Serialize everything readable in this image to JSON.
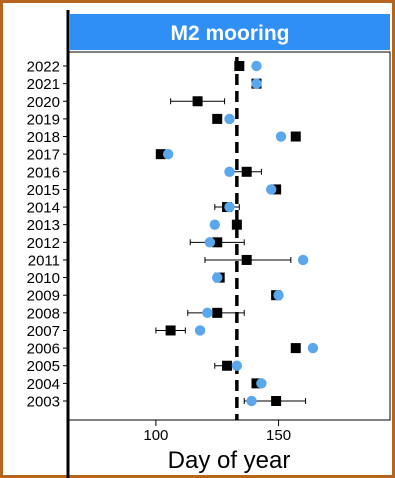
{
  "chart_data": {
    "type": "scatter",
    "title": "M2 mooring",
    "xlabel": "Day of year",
    "ylabel": "",
    "xlim": [
      65,
      195
    ],
    "x_ticks": [
      100,
      150
    ],
    "reference_line_x": 133,
    "years": [
      "2003",
      "2004",
      "2005",
      "2006",
      "2007",
      "2008",
      "2009",
      "2010",
      "2011",
      "2012",
      "2013",
      "2014",
      "2015",
      "2016",
      "2017",
      "2018",
      "2019",
      "2020",
      "2021",
      "2022"
    ],
    "series": [
      {
        "marker": "square",
        "color": "#000000",
        "values": [
          149,
          141,
          129,
          157,
          106,
          125,
          149,
          126,
          137,
          125,
          133,
          129,
          149,
          137,
          102,
          157,
          125,
          117,
          141,
          134
        ],
        "err_low": [
          136,
          null,
          124,
          null,
          100,
          113,
          null,
          null,
          120,
          114,
          null,
          124,
          null,
          131,
          null,
          null,
          null,
          106,
          null,
          null
        ],
        "err_high": [
          161,
          null,
          134,
          null,
          112,
          136,
          null,
          null,
          155,
          136,
          null,
          134,
          null,
          143,
          null,
          null,
          null,
          128,
          null,
          null
        ]
      },
      {
        "marker": "circle",
        "color": "#5ba7eb",
        "values": [
          139,
          143,
          133,
          164,
          118,
          121,
          150,
          125,
          160,
          122,
          124,
          130,
          147,
          130,
          105,
          151,
          130,
          null,
          141,
          141
        ]
      }
    ]
  }
}
